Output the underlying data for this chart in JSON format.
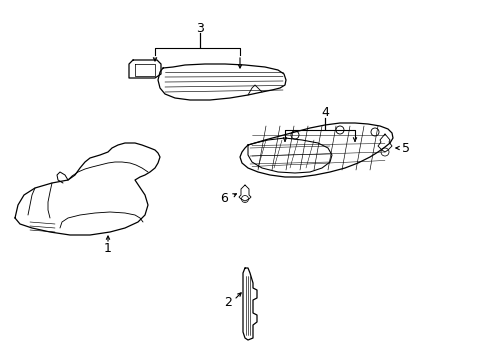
{
  "background_color": "#ffffff",
  "line_color": "#000000",
  "line_width": 0.9,
  "label_fontsize": 9,
  "figsize": [
    4.89,
    3.6
  ],
  "dpi": 100
}
